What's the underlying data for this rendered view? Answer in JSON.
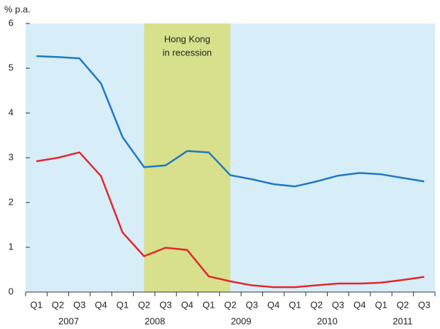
{
  "chart_data": {
    "type": "line",
    "y_label": "% p.a.",
    "groups": [
      {
        "label": "2007",
        "categories": [
          "Q1",
          "Q2",
          "Q3",
          "Q4"
        ]
      },
      {
        "label": "2008",
        "categories": [
          "Q1",
          "Q2",
          "Q3",
          "Q4"
        ]
      },
      {
        "label": "2009",
        "categories": [
          "Q1",
          "Q2",
          "Q3",
          "Q4"
        ]
      },
      {
        "label": "2010",
        "categories": [
          "Q1",
          "Q2",
          "Q3",
          "Q4"
        ]
      },
      {
        "label": "2011",
        "categories": [
          "Q1",
          "Q2",
          "Q3"
        ]
      }
    ],
    "series": [
      {
        "color": "#1f79c2",
        "values": [
          5.27,
          5.25,
          5.22,
          4.66,
          3.46,
          2.79,
          2.83,
          3.15,
          3.12,
          2.61,
          2.52,
          2.41,
          2.36,
          2.47,
          2.6,
          2.66,
          2.63,
          2.55,
          2.47
        ]
      },
      {
        "color": "#e2262d",
        "values": [
          2.92,
          3.0,
          3.12,
          2.59,
          1.33,
          0.8,
          0.99,
          0.94,
          0.35,
          0.24,
          0.15,
          0.11,
          0.11,
          0.15,
          0.19,
          0.19,
          0.21,
          0.27,
          0.34
        ]
      }
    ],
    "shaded_region": {
      "x_range": [
        5,
        9
      ],
      "label": [
        "Hong Kong",
        "in recession"
      ],
      "color": "#d8e08c"
    },
    "background": "#d7edf8",
    "ylim": [
      0,
      6
    ],
    "yticks": [
      0,
      1,
      2,
      3,
      4,
      5,
      6
    ]
  }
}
